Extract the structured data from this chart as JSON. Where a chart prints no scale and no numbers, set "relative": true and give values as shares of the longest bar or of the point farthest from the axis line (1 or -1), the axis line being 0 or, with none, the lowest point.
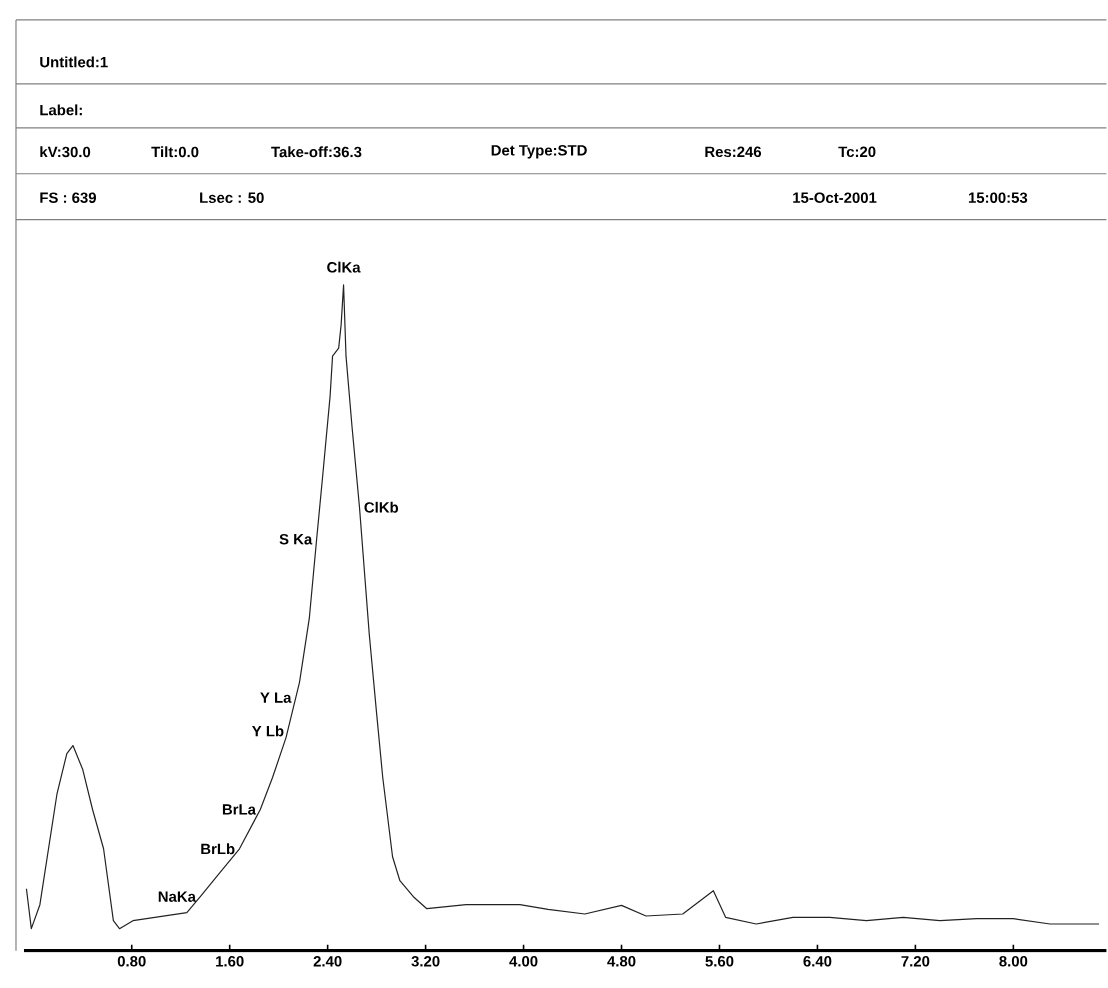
{
  "chart_data": {
    "type": "line",
    "title": "Untitled:1",
    "relative": true,
    "color": "#222222",
    "annotations": [
      "Label:",
      "kV:30.0",
      "Tilt:0.0",
      "Take-off:36.3",
      "Det Type:STD",
      "Res:246",
      "Tc:20",
      "FS : 639",
      "Lsec : 50",
      "15-Oct-2001",
      "15:00:53",
      {
        "text": "ClKa",
        "x": 2.53,
        "y": 1.0
      },
      {
        "text": "ClKb",
        "x": 2.66,
        "y": 0.666
      },
      {
        "text": "S Ka",
        "x": 2.31,
        "y": 0.618
      },
      {
        "text": "Y La",
        "x": 2.14,
        "y": 0.38
      },
      {
        "text": "Y Lb",
        "x": 2.08,
        "y": 0.33
      },
      {
        "text": "BrLa",
        "x": 1.85,
        "y": 0.212
      },
      {
        "text": "BrLb",
        "x": 1.68,
        "y": 0.153
      },
      {
        "text": "NaKa",
        "x": 1.36,
        "y": 0.081
      }
    ],
    "x": [
      -0.06,
      -0.02,
      0.05,
      0.19,
      0.27,
      0.32,
      0.4,
      0.48,
      0.57,
      0.65,
      0.7,
      0.81,
      1.03,
      1.25,
      1.36,
      1.52,
      1.68,
      1.85,
      1.95,
      2.06,
      2.17,
      2.25,
      2.31,
      2.36,
      2.42,
      2.44,
      2.49,
      2.51,
      2.53,
      2.55,
      2.6,
      2.66,
      2.74,
      2.8,
      2.85,
      2.93,
      2.99,
      3.1,
      3.21,
      3.53,
      3.97,
      4.2,
      4.5,
      4.8,
      5.0,
      5.3,
      5.55,
      5.65,
      5.9,
      6.2,
      6.5,
      6.8,
      7.1,
      7.4,
      7.7,
      8.0,
      8.3,
      8.7
    ],
    "values": [
      0.093,
      0.033,
      0.069,
      0.236,
      0.296,
      0.308,
      0.272,
      0.212,
      0.153,
      0.045,
      0.033,
      0.045,
      0.051,
      0.057,
      0.081,
      0.117,
      0.153,
      0.212,
      0.26,
      0.32,
      0.403,
      0.499,
      0.618,
      0.714,
      0.833,
      0.893,
      0.905,
      0.94,
      1.0,
      0.893,
      0.785,
      0.666,
      0.475,
      0.356,
      0.26,
      0.141,
      0.105,
      0.081,
      0.063,
      0.069,
      0.069,
      0.062,
      0.055,
      0.068,
      0.052,
      0.055,
      0.09,
      0.05,
      0.04,
      0.05,
      0.05,
      0.045,
      0.05,
      0.045,
      0.048,
      0.048,
      0.04,
      0.04
    ],
    "xlim": [
      -0.08,
      8.76
    ],
    "xticks": [
      {
        "value": 0.8,
        "label": "0.80"
      },
      {
        "value": 1.6,
        "label": "1.60"
      },
      {
        "value": 2.4,
        "label": "2.40"
      },
      {
        "value": 3.2,
        "label": "3.20"
      },
      {
        "value": 4.0,
        "label": "4.00"
      },
      {
        "value": 4.8,
        "label": "4.80"
      },
      {
        "value": 5.6,
        "label": "5.60"
      },
      {
        "value": 6.4,
        "label": "6.40"
      },
      {
        "value": 7.2,
        "label": "7.20"
      },
      {
        "value": 8.0,
        "label": "8.00"
      }
    ]
  }
}
